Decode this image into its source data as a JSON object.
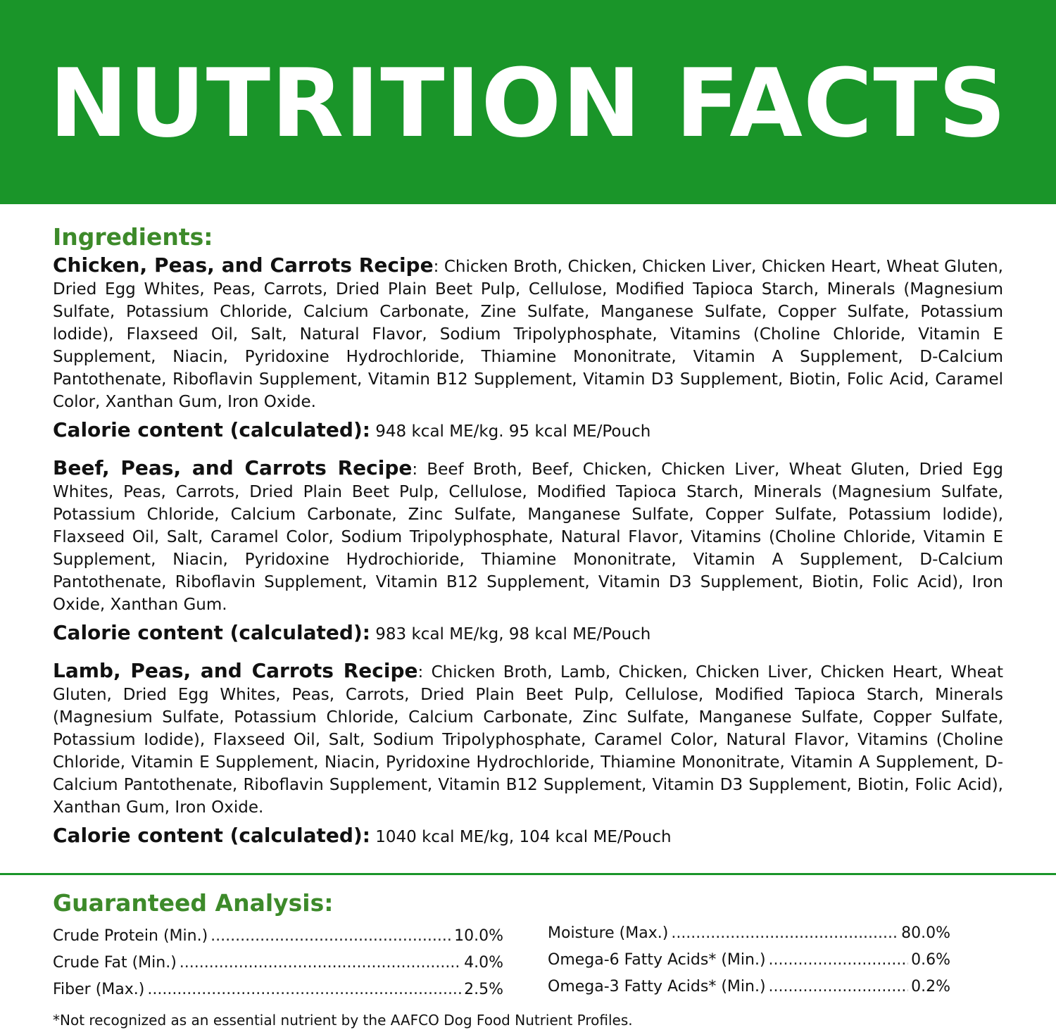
{
  "header": {
    "title": "NUTRITION FACTS"
  },
  "colors": {
    "banner": "#1a9529",
    "heading": "#3d8a2a"
  },
  "ingredients": {
    "heading": "Ingredients:",
    "recipes": [
      {
        "name": "Chicken, Peas, and Carrots Recipe",
        "text": ": Chicken Broth, Chicken, Chicken Liver, Chicken Heart, Wheat Gluten, Dried Egg Whites, Peas, Carrots, Dried Plain Beet Pulp, Cellulose, Modified Tapioca Starch, Minerals (Magnesium Sulfate, Potassium Chloride, Calcium Carbonate, Zine Sulfate, Manganese Sulfate, Copper Sulfate, Potassium lodide), Flaxseed Oil, Salt, Natural Flavor, Sodium Tripolyphosphate, Vitamins (Choline Chloride, Vitamin E Supplement, Niacin, Pyridoxine Hydrochloride, Thiamine Mononitrate, Vitamin A Supplement, D-Calcium Pantothenate, Riboflavin Supplement, Vitamin B12 Supplement, Vitamin D3 Supplement, Biotin, Folic Acid, Caramel Color, Xanthan Gum, Iron Oxide.",
        "calorie_label": "Calorie content (calculated):",
        "calorie_value": " 948 kcal ME/kg. 95 kcal ME/Pouch"
      },
      {
        "name": "Beef, Peas, and Carrots Recipe",
        "text": ": Beef Broth, Beef, Chicken, Chicken Liver, Wheat Gluten, Dried Egg Whites, Peas, Carrots, Dried Plain Beet Pulp, Cellulose, Modified Tapioca Starch, Minerals (Magnesium Sulfate, Potassium Chloride, Calcium Carbonate, Zinc Sulfate, Manganese Sulfate, Copper Sulfate, Potassium lodide), Flaxseed Oil, Salt, Caramel Color, Sodium Tripolyphosphate, Natural Flavor, Vitamins (Choline Chloride, Vitamin E Supplement, Niacin, Pyridoxine Hydrochioride, Thiamine Mononitrate, Vitamin A Supplement, D-Calcium Pantothenate, Riboflavin Supplement, Vitamin B12 Supplement, Vitamin D3 Supplement, Biotin, Folic Acid), Iron Oxide, Xanthan Gum.",
        "calorie_label": "Calorie content (calculated):",
        "calorie_value": " 983 kcal ME/kg, 98 kcal ME/Pouch"
      },
      {
        "name": "Lamb, Peas, and Carrots Recipe",
        "text": ": Chicken Broth, Lamb, Chicken, Chicken Liver, Chicken Heart, Wheat Gluten, Dried Egg Whites, Peas, Carrots, Dried Plain Beet Pulp, Cellulose, Modified Tapioca Starch, Minerals (Magnesium Sulfate, Potassium Chloride, Calcium Carbonate, Zinc Sulfate, Manganese Sulfate, Copper Sulfate, Potassium Iodide), Flaxseed Oil, Salt, Sodium Tripolyphosphate, Caramel Color, Natural Flavor, Vitamins (Choline Chloride, Vitamin E Supplement, Niacin, Pyridoxine Hydrochloride, Thiamine Mononitrate, Vitamin A Supplement, D-Calcium Pantothenate, Riboflavin Supplement, Vitamin B12 Supplement, Vitamin D3 Supplement, Biotin, Folic Acid), Xanthan Gum, Iron Oxide.",
        "calorie_label": "Calorie content (calculated):",
        "calorie_value": " 1040 kcal ME/kg, 104 kcal ME/Pouch"
      }
    ]
  },
  "analysis": {
    "heading": "Guaranteed Analysis:",
    "left": [
      {
        "label": "Crude Protein (Min.)",
        "value": "10.0%"
      },
      {
        "label": "Crude Fat (Min.)",
        "value": "4.0%"
      },
      {
        "label": "Fiber (Max.)",
        "value": "2.5%"
      }
    ],
    "right": [
      {
        "label": "Moisture (Max.)",
        "value": "80.0%"
      },
      {
        "label": "Omega-6 Fatty Acids* (Min.)",
        "value": "0.6%"
      },
      {
        "label": "Omega-3 Fatty Acids* (Min.)",
        "value": "0.2%"
      }
    ],
    "footnote": "*Not recognized as an essential nutrient by the AAFCO Dog Food Nutrient Profiles."
  }
}
